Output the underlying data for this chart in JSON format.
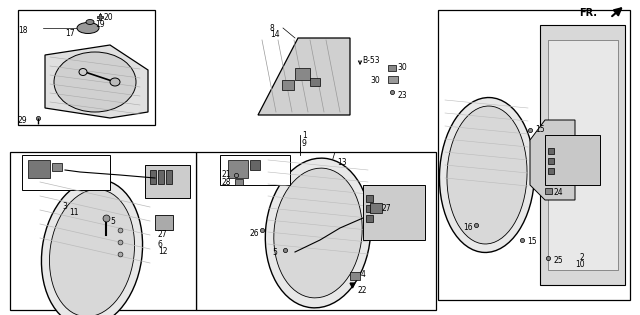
{
  "bg_color": "#ffffff",
  "line_color": "#000000",
  "gray_fill": "#d8d8d8",
  "dark_gray": "#555555",
  "fig_w": 6.4,
  "fig_h": 3.15,
  "dpi": 100
}
